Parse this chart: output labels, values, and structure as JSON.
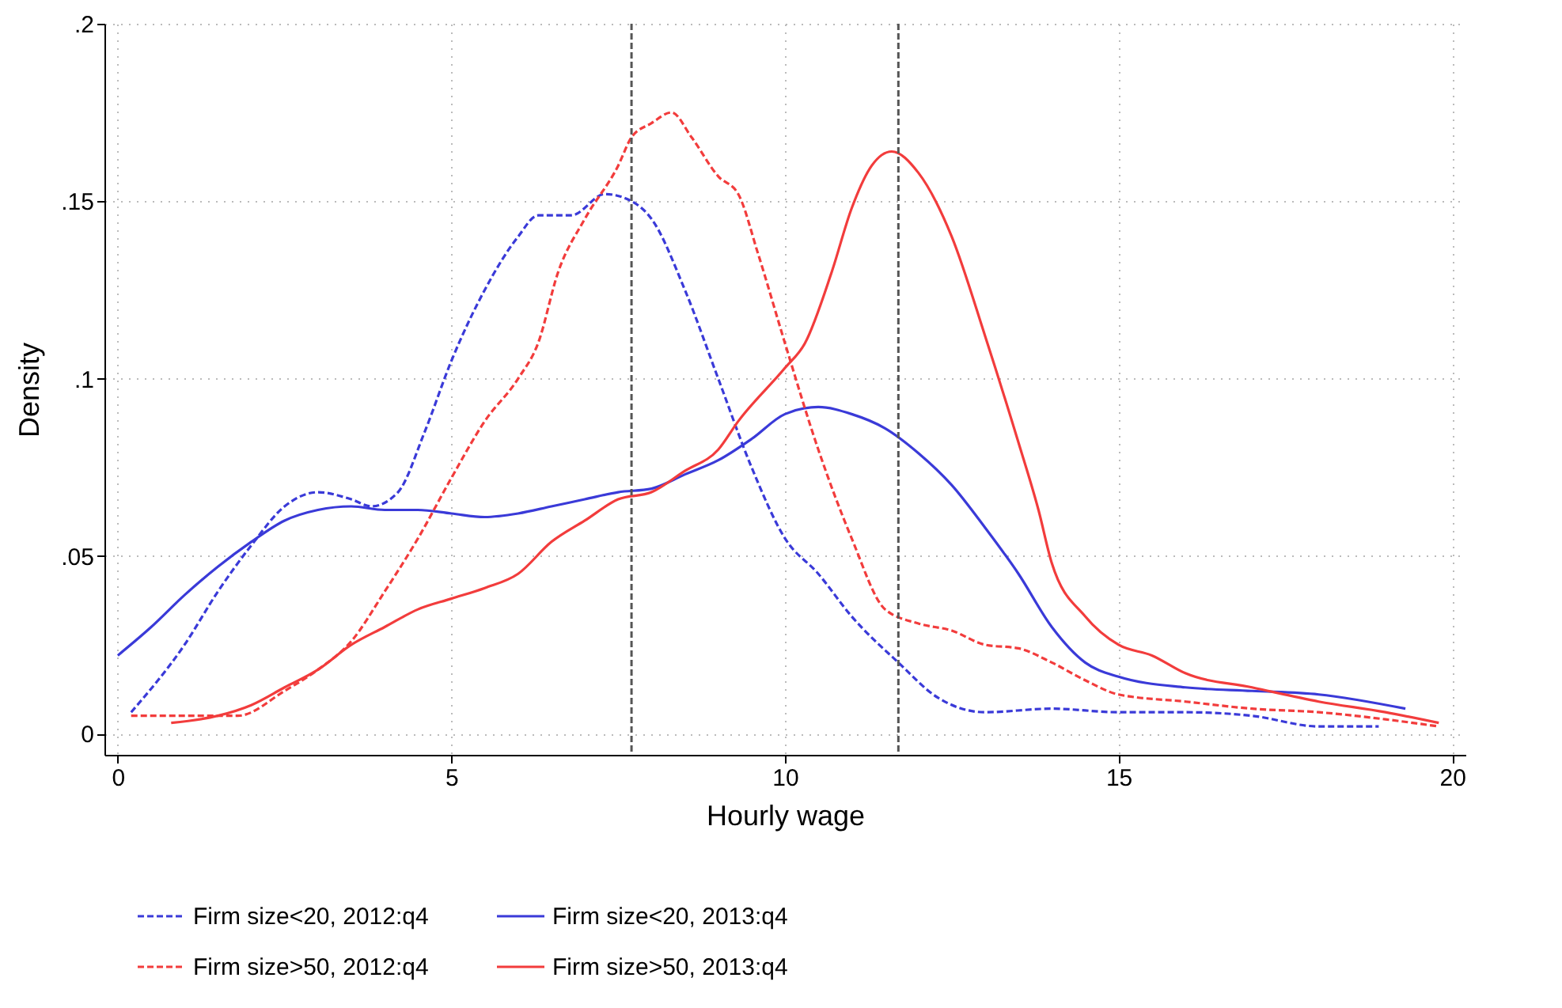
{
  "chart_data": {
    "type": "line",
    "xlabel": "Hourly wage",
    "ylabel": "Density",
    "xlim": [
      -0.2,
      20.2
    ],
    "ylim": [
      -0.006,
      0.2
    ],
    "xticks": [
      0,
      5,
      10,
      15,
      20
    ],
    "yticks": [
      {
        "value": 0,
        "label": "0"
      },
      {
        "value": 0.05,
        "label": ".05"
      },
      {
        "value": 0.1,
        "label": ".1"
      },
      {
        "value": 0.15,
        "label": ".15"
      },
      {
        "value": 0.2,
        "label": ".2"
      }
    ],
    "grid": true,
    "legend": "bottom",
    "marker": "none",
    "ref_lines": [
      {
        "axis": "x",
        "value": 7.7,
        "color": "#555555",
        "line_style": "dashed"
      },
      {
        "axis": "x",
        "value": 11.7,
        "color": "#555555",
        "line_style": "dashed"
      }
    ],
    "series": [
      {
        "name": "Firm size<20, 2012:q4",
        "color": "#3a3ad8",
        "line_style": "dashed",
        "x": [
          0.2,
          1,
          1.5,
          2,
          2.5,
          3,
          3.5,
          3.8,
          4.2,
          4.6,
          5,
          5.5,
          6,
          6.3,
          6.8,
          7.3,
          7.7,
          8,
          8.5,
          9,
          9.5,
          10,
          10.5,
          11,
          11.7,
          12.3,
          13,
          14,
          15,
          16,
          17,
          18,
          18.9
        ],
        "values": [
          0.006,
          0.025,
          0.04,
          0.053,
          0.064,
          0.068,
          0.066,
          0.064,
          0.068,
          0.085,
          0.105,
          0.125,
          0.14,
          0.146,
          0.146,
          0.152,
          0.15,
          0.145,
          0.125,
          0.1,
          0.075,
          0.055,
          0.045,
          0.033,
          0.02,
          0.01,
          0.006,
          0.007,
          0.006,
          0.006,
          0.005,
          0.002,
          0.002
        ]
      },
      {
        "name": "Firm size<20, 2013:q4",
        "color": "#3a3ad8",
        "line_style": "solid",
        "x": [
          0,
          0.5,
          1,
          1.5,
          2,
          2.5,
          3,
          3.5,
          4,
          4.5,
          5,
          5.5,
          6,
          6.5,
          7,
          7.5,
          8,
          8.5,
          9,
          9.5,
          10,
          10.5,
          11,
          11.5,
          12,
          12.5,
          13,
          13.5,
          14,
          14.5,
          15,
          16,
          17,
          18,
          19.3
        ],
        "values": [
          0.022,
          0.03,
          0.039,
          0.047,
          0.054,
          0.06,
          0.063,
          0.064,
          0.063,
          0.063,
          0.062,
          0.061,
          0.062,
          0.064,
          0.066,
          0.068,
          0.069,
          0.073,
          0.077,
          0.083,
          0.09,
          0.092,
          0.09,
          0.086,
          0.079,
          0.07,
          0.058,
          0.045,
          0.03,
          0.02,
          0.016,
          0.013,
          0.012,
          0.011,
          0.007
        ]
      },
      {
        "name": "Firm size>50, 2012:q4",
        "color": "#f23c3c",
        "line_style": "dashed",
        "x": [
          0.2,
          1,
          1.8,
          2.5,
          3,
          3.5,
          4,
          4.5,
          5,
          5.5,
          6,
          6.3,
          6.6,
          7,
          7.5,
          7.7,
          8,
          8.3,
          8.6,
          9,
          9.3,
          9.6,
          10,
          10.5,
          11,
          11.5,
          12,
          12.5,
          13,
          13.5,
          14,
          14.5,
          15,
          16,
          17,
          18,
          19,
          19.8
        ],
        "values": [
          0.005,
          0.005,
          0.005,
          0.012,
          0.018,
          0.026,
          0.04,
          0.055,
          0.072,
          0.088,
          0.1,
          0.11,
          0.13,
          0.145,
          0.16,
          0.168,
          0.172,
          0.175,
          0.168,
          0.157,
          0.152,
          0.135,
          0.11,
          0.08,
          0.055,
          0.035,
          0.031,
          0.029,
          0.025,
          0.024,
          0.02,
          0.015,
          0.011,
          0.009,
          0.007,
          0.006,
          0.004,
          0.002
        ]
      },
      {
        "name": "Firm size>50, 2013:q4",
        "color": "#f23c3c",
        "line_style": "solid",
        "x": [
          0.8,
          1.5,
          2,
          2.5,
          3,
          3.5,
          4,
          4.5,
          5,
          5.5,
          6,
          6.5,
          7,
          7.5,
          8,
          8.5,
          9,
          9.3,
          10,
          10.3,
          10.7,
          11,
          11.3,
          11.6,
          12,
          12.5,
          13,
          13.5,
          13.8,
          14,
          14.5,
          15,
          15.5,
          16,
          17,
          18,
          19,
          19.8
        ],
        "values": [
          0.003,
          0.005,
          0.008,
          0.013,
          0.018,
          0.025,
          0.03,
          0.035,
          0.038,
          0.041,
          0.045,
          0.054,
          0.06,
          0.066,
          0.068,
          0.074,
          0.08,
          0.088,
          0.103,
          0.11,
          0.13,
          0.148,
          0.16,
          0.164,
          0.158,
          0.14,
          0.112,
          0.082,
          0.063,
          0.048,
          0.033,
          0.025,
          0.022,
          0.017,
          0.013,
          0.009,
          0.006,
          0.003
        ]
      }
    ]
  }
}
